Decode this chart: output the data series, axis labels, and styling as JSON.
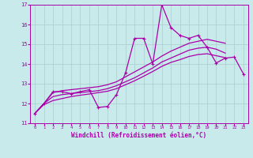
{
  "background_color": "#c8eaea",
  "grid_color": "#aacccc",
  "line_color": "#aa00aa",
  "xlim": [
    -0.5,
    23.5
  ],
  "ylim": [
    11,
    17
  ],
  "xticks": [
    0,
    1,
    2,
    3,
    4,
    5,
    6,
    7,
    8,
    9,
    10,
    11,
    12,
    13,
    14,
    15,
    16,
    17,
    18,
    19,
    20,
    21,
    22,
    23
  ],
  "yticks": [
    11,
    12,
    13,
    14,
    15,
    16,
    17
  ],
  "xlabel": "Windchill (Refroidissement éolien,°C)",
  "y_zigzag": [
    11.5,
    12.0,
    12.6,
    12.6,
    12.5,
    12.6,
    12.7,
    11.8,
    11.85,
    12.45,
    13.55,
    15.3,
    15.3,
    14.0,
    17.0,
    15.85,
    15.45,
    15.3,
    15.45,
    14.85,
    14.05,
    14.3,
    14.35,
    13.5
  ],
  "y_smooth1": [
    11.5,
    12.0,
    12.55,
    12.65,
    12.7,
    12.75,
    12.8,
    12.85,
    12.95,
    13.1,
    13.35,
    13.6,
    13.85,
    14.1,
    14.4,
    14.65,
    14.85,
    15.05,
    15.15,
    15.25,
    15.15,
    15.05
  ],
  "y_smooth2": [
    11.5,
    12.0,
    12.35,
    12.45,
    12.5,
    12.55,
    12.6,
    12.65,
    12.75,
    12.9,
    13.1,
    13.3,
    13.55,
    13.8,
    14.1,
    14.3,
    14.5,
    14.7,
    14.8,
    14.85,
    14.75,
    14.55
  ],
  "y_smooth3": [
    11.5,
    11.95,
    12.15,
    12.25,
    12.35,
    12.42,
    12.48,
    12.55,
    12.62,
    12.75,
    12.95,
    13.15,
    13.38,
    13.62,
    13.88,
    14.08,
    14.22,
    14.38,
    14.48,
    14.52,
    14.42,
    14.32
  ]
}
